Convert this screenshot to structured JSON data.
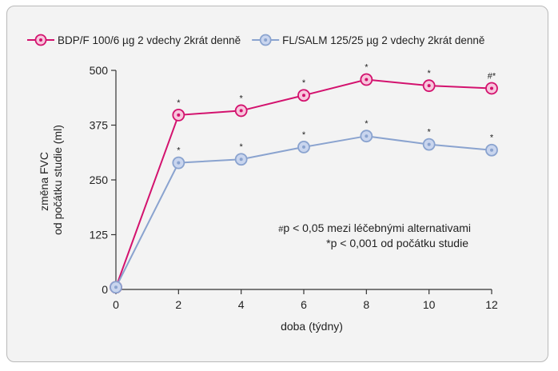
{
  "chart_data": {
    "type": "line",
    "x": [
      0,
      2,
      4,
      6,
      8,
      10,
      12
    ],
    "xlabel": "doba (týdny)",
    "ylabel_lines": [
      "změna FVC",
      "od počátku studie (ml)"
    ],
    "xlim": [
      0,
      12
    ],
    "ylim": [
      0,
      500
    ],
    "x_ticks": [
      "0",
      "2",
      "4",
      "6",
      "8",
      "10",
      "12"
    ],
    "y_ticks": [
      "0",
      "125",
      "250",
      "375",
      "500"
    ],
    "grid": false,
    "legend_position": "top",
    "series": [
      {
        "name": "BDP/F 100/6 µg 2 vdechy 2krát denně",
        "color": "#d3126e",
        "marker_fill": "#f7c6dc",
        "values": [
          5,
          398,
          408,
          443,
          479,
          465,
          459
        ],
        "annotations": [
          "",
          "*",
          "*",
          "*",
          "*",
          "*",
          "#*"
        ]
      },
      {
        "name": "FL/SALM 125/25 µg 2 vdechy 2krát denně",
        "color": "#8aa3cf",
        "marker_fill": "#c9d5ee",
        "values": [
          5,
          289,
          297,
          325,
          350,
          331,
          318
        ],
        "annotations": [
          "",
          "*",
          "*",
          "*",
          "*",
          "*",
          "*"
        ]
      }
    ],
    "notes": [
      {
        "symbol": "#",
        "text": "p < 0,05 mezi léčebnými alternativami"
      },
      {
        "symbol": "*",
        "text": "p < 0,001 od počátku studie"
      }
    ]
  }
}
